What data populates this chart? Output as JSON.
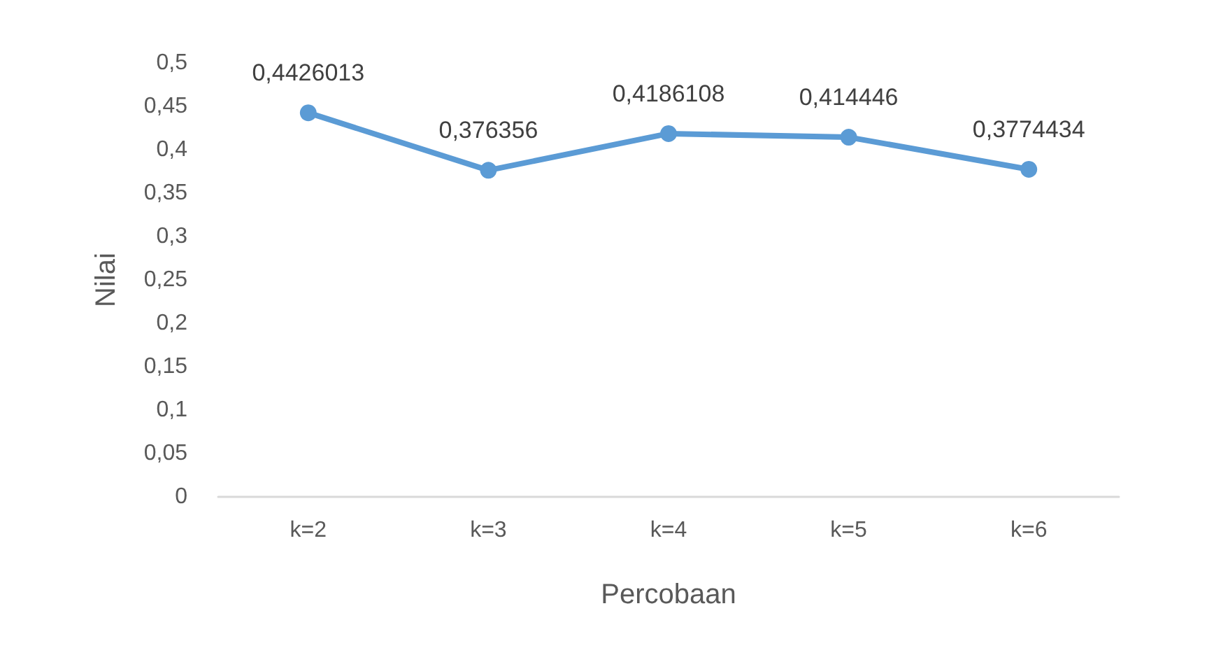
{
  "chart_data": {
    "type": "line",
    "xlabel": "Percobaan",
    "ylabel": "Nilai",
    "categories": [
      "k=2",
      "k=3",
      "k=4",
      "k=5",
      "k=6"
    ],
    "series": [
      {
        "color": "#5b9bd5",
        "values": [
          0.4426013,
          0.376356,
          0.4186108,
          0.414446,
          0.3774434
        ],
        "value_labels": [
          "0,4426013",
          "0,376356",
          "0,4186108",
          "0,414446",
          "0,3774434"
        ]
      }
    ],
    "ylim": [
      0,
      0.5
    ],
    "yticks": [
      {
        "value": 0,
        "label": "0"
      },
      {
        "value": 0.05,
        "label": "0,05"
      },
      {
        "value": 0.1,
        "label": "0,1"
      },
      {
        "value": 0.15,
        "label": "0,15"
      },
      {
        "value": 0.2,
        "label": "0,2"
      },
      {
        "value": 0.25,
        "label": "0,25"
      },
      {
        "value": 0.3,
        "label": "0,3"
      },
      {
        "value": 0.35,
        "label": "0,35"
      },
      {
        "value": 0.4,
        "label": "0,4"
      },
      {
        "value": 0.45,
        "label": "0,45"
      },
      {
        "value": 0.5,
        "label": "0,5"
      }
    ],
    "grid": false,
    "marker": "circle",
    "line_style": "solid"
  }
}
